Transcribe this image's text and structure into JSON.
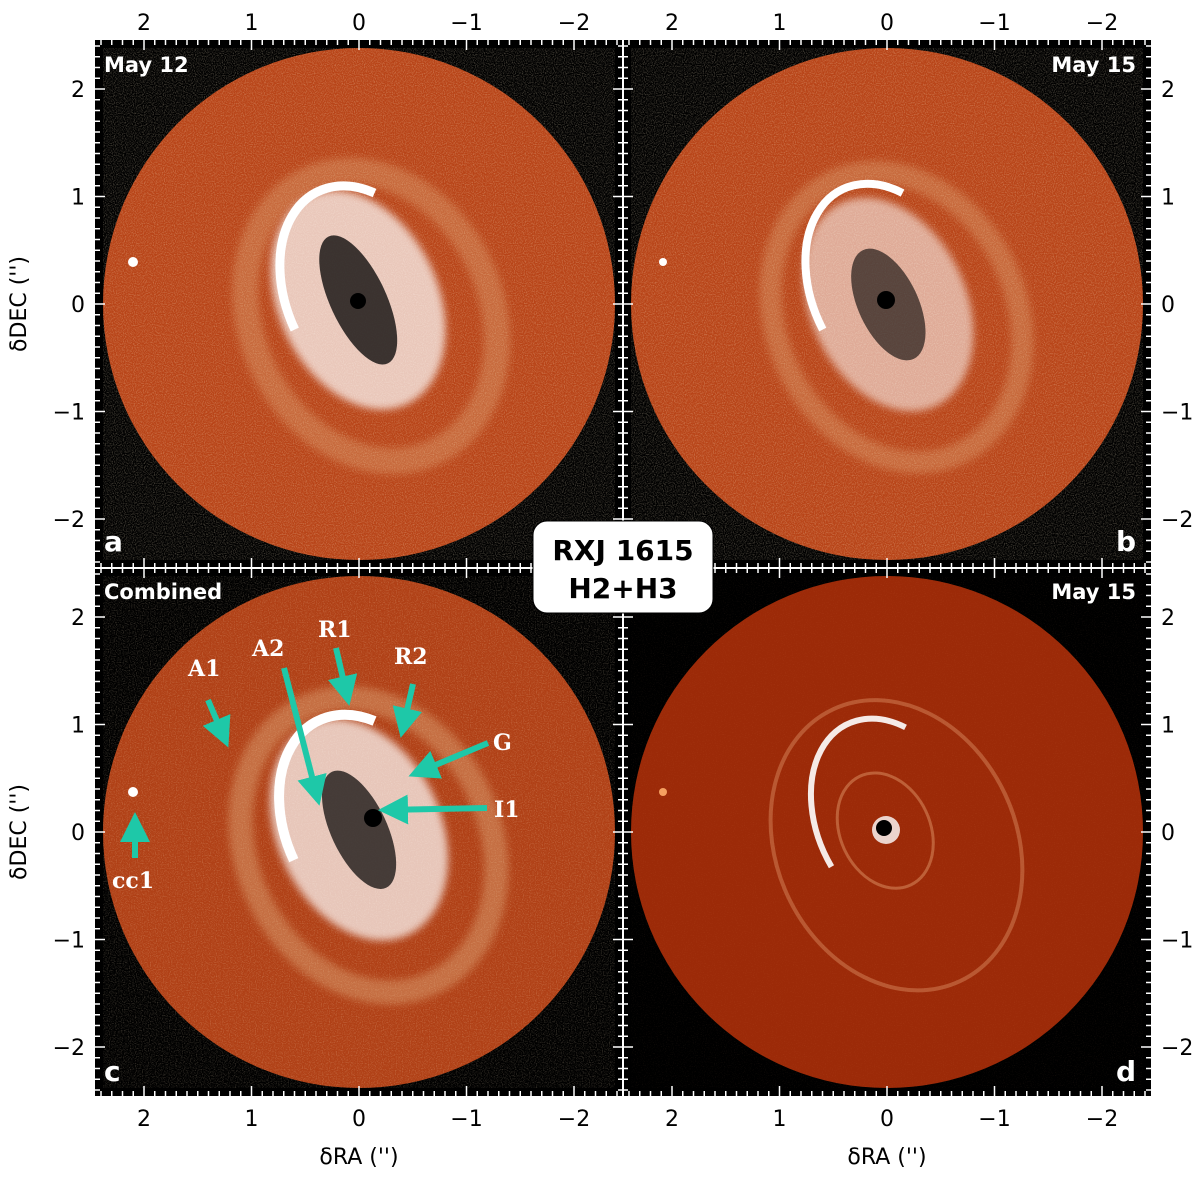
{
  "figure": {
    "title_lines": [
      "RXJ 1615",
      "H2+H3"
    ],
    "x_axis_label": "δRA ('')",
    "y_axis_label": "δDEC ('')",
    "x_ticks": [
      "2",
      "1",
      "0",
      "−1",
      "−2"
    ],
    "y_ticks": [
      "2",
      "1",
      "0",
      "−1",
      "−2"
    ],
    "colors": {
      "background": "#000000",
      "annulus_accent": "#1ec8a8",
      "disk_noise": "#c0441a",
      "panel_d": "#9c2a08"
    }
  },
  "panels": [
    {
      "id": "a",
      "letter": "a",
      "corner_label": "May 12",
      "corner_side": "left"
    },
    {
      "id": "b",
      "letter": "b",
      "corner_label": "May 15",
      "corner_side": "right"
    },
    {
      "id": "c",
      "letter": "c",
      "corner_label": "Combined",
      "corner_side": "left"
    },
    {
      "id": "d",
      "letter": "d",
      "corner_label": "May 15",
      "corner_side": "right"
    }
  ],
  "annotations": {
    "A1": "A1",
    "A2": "A2",
    "R1": "R1",
    "R2": "R2",
    "G": "G",
    "I1": "I1",
    "cc1": "cc1"
  }
}
